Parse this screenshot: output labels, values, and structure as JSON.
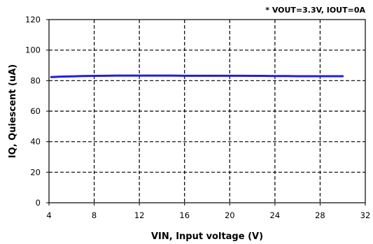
{
  "chart_data": {
    "type": "line",
    "title": "",
    "xlabel": "VIN, Input voltage (V)",
    "ylabel": "IQ, Quiescent (uA)",
    "annotation": "* VOUT=3.3V, IOUT=0A",
    "xlim": [
      4,
      32
    ],
    "ylim": [
      0,
      120
    ],
    "x_ticks": [
      4,
      8,
      12,
      16,
      20,
      24,
      28,
      32
    ],
    "y_ticks": [
      0,
      20,
      40,
      60,
      80,
      100,
      120
    ],
    "grid": true,
    "grid_style": "dashed",
    "legend": "none",
    "series": [
      {
        "color": "#1f1fe0",
        "x": [
          4.2,
          5,
          6,
          7,
          8,
          9,
          10,
          11,
          12,
          13,
          14,
          15,
          16,
          17,
          18,
          19,
          20,
          21,
          22,
          23,
          24,
          25,
          26,
          27,
          28,
          29,
          30
        ],
        "y": [
          82.3,
          82.6,
          82.8,
          83.0,
          83.1,
          83.2,
          83.3,
          83.3,
          83.3,
          83.3,
          83.3,
          83.3,
          83.2,
          83.2,
          83.2,
          83.2,
          83.2,
          83.2,
          83.1,
          83.1,
          83.0,
          83.0,
          82.9,
          82.9,
          82.9,
          82.9,
          82.9
        ]
      }
    ]
  }
}
